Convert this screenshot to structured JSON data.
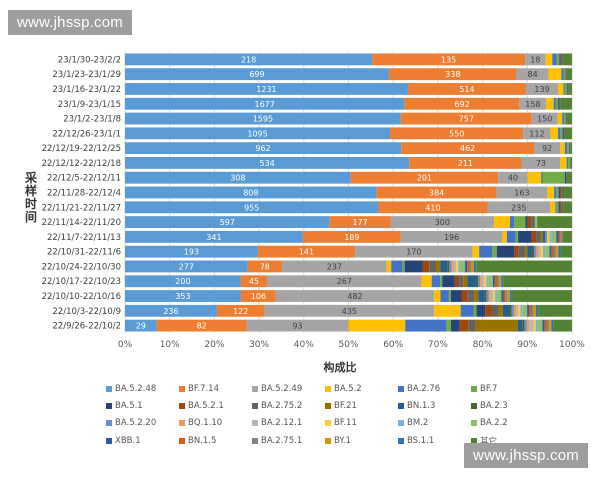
{
  "watermark": {
    "top": "www.jhssp.com",
    "bottom": "www.jhssp.com"
  },
  "chart_data": {
    "type": "bar",
    "orientation": "horizontal",
    "stacked": "percent",
    "title": "",
    "xlabel": "构成比",
    "ylabel": "采样时间",
    "xlim": [
      0,
      100
    ],
    "x_ticks": [
      "0%",
      "10%",
      "20%",
      "30%",
      "40%",
      "50%",
      "60%",
      "70%",
      "80%",
      "90%",
      "100%"
    ],
    "legend_position": "bottom",
    "categories": [
      "23/1/30-23/2/2",
      "23/1/23-23/1/29",
      "23/1/16-23/1/22",
      "23/1/9-23/1/15",
      "23/1/2-23/1/8",
      "22/12/26-23/1/1",
      "22/12/19-22/12/25",
      "22/12/12-22/12/18",
      "22/12/5-22/12/11",
      "22/11/28-22/12/4",
      "22/11/21-22/11/27",
      "22/11/14-22/11/20",
      "22/11/7-22/11/13",
      "22/10/31-22/11/6",
      "22/10/24-22/10/30",
      "22/10/17-22/10/23",
      "22/10/10-22/10/16",
      "22/10/3-22/10/9",
      "22/9/26-22/10/2"
    ],
    "series": [
      {
        "name": "BA.5.2.48",
        "color": "#5b9bd5",
        "values_pct": [
          55.3,
          62.0,
          63.3,
          62.5,
          61.7,
          59.3,
          61.8,
          63.6,
          50.5,
          56.3,
          56.7,
          45.8,
          39.6,
          30.2,
          27.4,
          27.5,
          27.6,
          20.9,
          7.1
        ],
        "labels": [
          "218",
          "699",
          "1231",
          "1677",
          "1595",
          "1095",
          "962",
          "534",
          "308",
          "808",
          "955",
          "597",
          "341",
          "193",
          "277",
          "200",
          "353",
          "236",
          "29"
        ]
      },
      {
        "name": "BF.7.14",
        "color": "#ed7d31",
        "values_pct": [
          34.2,
          30.0,
          26.4,
          25.8,
          29.3,
          29.8,
          29.7,
          25.1,
          33.0,
          26.8,
          24.4,
          13.6,
          21.8,
          22.1,
          7.7,
          6.2,
          8.3,
          10.8,
          20.1
        ],
        "labels": [
          "135",
          "338",
          "514",
          "692",
          "757",
          "550",
          "462",
          "211",
          "201",
          "384",
          "410",
          "177",
          "189",
          "141",
          "78",
          "45",
          "106",
          "122",
          "82"
        ]
      },
      {
        "name": "BA.5.2.49",
        "color": "#a5a5a5",
        "values_pct": [
          4.6,
          7.5,
          7.2,
          5.9,
          5.8,
          6.1,
          5.9,
          8.7,
          6.6,
          11.4,
          14.0,
          23.2,
          22.6,
          26.7,
          23.4,
          36.7,
          37.7,
          38.6,
          22.8
        ],
        "labels": [
          "18",
          "84",
          "139",
          "158",
          "150",
          "112",
          "92",
          "73",
          "40",
          "163",
          "235",
          "300",
          "196",
          "170",
          "237",
          "267",
          "482",
          "435",
          "93"
        ]
      },
      {
        "name": "BA.5.2",
        "color": "#ffc000",
        "values_pct": [
          1.5,
          3.0,
          1.2,
          1.7,
          1.0,
          1.7,
          1.0,
          1.4,
          3.0,
          1.5,
          1.2,
          3.5,
          1.0,
          1.5,
          1.0,
          2.4,
          1.5,
          6.0,
          12.7
        ]
      },
      {
        "name": "BA.2.76",
        "color": "#4472c4",
        "values_pct": [
          1.0,
          0.5,
          0.3,
          0.5,
          0.4,
          0.5,
          0.5,
          0.3,
          0.3,
          0.5,
          0.3,
          1.0,
          2.0,
          3.0,
          2.5,
          2.0,
          2.0,
          3.0,
          9.2
        ]
      },
      {
        "name": "BF.7",
        "color": "#70ad47",
        "values_pct": [
          0.5,
          0.4,
          0.4,
          0.5,
          0.4,
          0.5,
          0.4,
          0.4,
          5.0,
          0.5,
          0.4,
          2.5,
          0.5,
          1.0,
          0.5,
          0.5,
          0.5,
          0.6,
          1.0
        ]
      },
      {
        "name": "BA.5.1",
        "color": "#264478",
        "values_pct": [
          0,
          0,
          0,
          0.2,
          0,
          0.2,
          0,
          0,
          0.3,
          0.3,
          0.3,
          0.5,
          3.0,
          4.0,
          4.0,
          3.0,
          2.5,
          2.0,
          2.0
        ]
      },
      {
        "name": "BA.5.2.1",
        "color": "#9e480e",
        "values_pct": [
          0,
          0,
          0,
          0,
          0,
          0,
          0,
          0,
          0,
          0.3,
          0.3,
          0.8,
          1.0,
          1.0,
          1.5,
          1.0,
          1.5,
          1.5,
          2.0
        ]
      },
      {
        "name": "BA.2.75.2",
        "color": "#636363",
        "values_pct": [
          0.8,
          0.4,
          0.4,
          0.3,
          0.3,
          0.3,
          0.3,
          0.2,
          0.3,
          0.5,
          0.4,
          0.8,
          1.0,
          1.5,
          1.5,
          1.0,
          1.5,
          1.5,
          1.5
        ]
      },
      {
        "name": "BF.21",
        "color": "#997300",
        "values_pct": [
          0,
          0,
          0,
          0,
          0,
          0,
          0,
          0,
          0,
          0,
          0,
          0,
          0.5,
          0.5,
          1.0,
          1.0,
          1.0,
          1.0,
          9.5
        ]
      },
      {
        "name": "BN.1.3",
        "color": "#255e91",
        "values_pct": [
          0,
          0,
          0,
          0,
          0,
          0,
          0,
          0,
          0,
          0,
          0,
          0,
          0.5,
          1.0,
          1.5,
          2.0,
          1.5,
          1.5,
          1.0
        ]
      },
      {
        "name": "BA.2.3",
        "color": "#43682b",
        "values_pct": [
          0,
          0,
          0,
          0,
          0,
          0,
          0,
          0,
          0,
          0,
          0,
          0,
          0,
          0.5,
          0.5,
          0.5,
          0.5,
          0.5,
          0.5
        ]
      },
      {
        "name": "BA.5.2.20",
        "color": "#698ed0",
        "values_pct": [
          0,
          0,
          0,
          0,
          0,
          0,
          0,
          0,
          0,
          0,
          0,
          0,
          0.5,
          0.5,
          0.5,
          0.5,
          0.5,
          0.5,
          0.5
        ]
      },
      {
        "name": "BQ.1.10",
        "color": "#f1975a",
        "values_pct": [
          0,
          0,
          0,
          0,
          0,
          0,
          0,
          0,
          0,
          0,
          0,
          0,
          0,
          0.5,
          0.5,
          0.5,
          0.5,
          0.5,
          0.5
        ]
      },
      {
        "name": "BA.2.12.1",
        "color": "#b7b7b7",
        "values_pct": [
          0,
          0,
          0,
          0,
          0,
          0,
          0,
          0,
          0,
          0,
          0,
          0,
          0,
          0.5,
          0.5,
          0.5,
          0.5,
          0.5,
          1.0
        ]
      },
      {
        "name": "BF.11",
        "color": "#ffcd33",
        "values_pct": [
          0,
          0,
          0,
          0,
          0,
          0,
          0,
          0,
          0,
          0,
          0,
          0,
          0.5,
          0.5,
          0.5,
          0.5,
          0.5,
          0.5,
          0.5
        ]
      },
      {
        "name": "BM.2",
        "color": "#7cafdd",
        "values_pct": [
          0,
          0,
          0,
          0,
          0,
          0,
          0,
          0,
          0,
          0,
          0,
          0,
          0.5,
          0.5,
          0.5,
          0.5,
          0.5,
          0.5,
          0.5
        ]
      },
      {
        "name": "BA.2.2",
        "color": "#8cc168",
        "values_pct": [
          0,
          0,
          0,
          0,
          0,
          0,
          0,
          0,
          0,
          0,
          0,
          0.5,
          1.0,
          1.0,
          1.0,
          1.0,
          1.0,
          1.0,
          1.0
        ]
      },
      {
        "name": "XBB.1",
        "color": "#335aa1",
        "values_pct": [
          0,
          0,
          0,
          0,
          0,
          0,
          0,
          0,
          0,
          0,
          0,
          0,
          0.5,
          0.5,
          0.5,
          0.5,
          0.5,
          0.5,
          0.5
        ]
      },
      {
        "name": "BN.1.5",
        "color": "#d26012",
        "values_pct": [
          0,
          0,
          0,
          0,
          0,
          0,
          0,
          0,
          0,
          0,
          0,
          0,
          0.5,
          0.5,
          0.5,
          0.5,
          0.5,
          0.5,
          0.5
        ]
      },
      {
        "name": "BA.2.75.1",
        "color": "#848484",
        "values_pct": [
          0,
          0,
          0,
          0,
          0,
          0,
          0,
          0,
          0,
          0,
          0,
          0,
          0.5,
          0.5,
          0.5,
          0.5,
          0.5,
          0.5,
          0.5
        ]
      },
      {
        "name": "BY.1",
        "color": "#cc9a00",
        "values_pct": [
          0,
          0,
          0,
          0,
          0,
          0,
          0,
          0,
          0,
          0,
          0,
          0,
          0,
          0.5,
          0.5,
          0.5,
          0.5,
          0.5,
          0.5
        ]
      },
      {
        "name": "BS.1.1",
        "color": "#2e75b6",
        "values_pct": [
          0,
          0,
          0,
          0,
          0,
          0,
          0,
          0,
          0,
          0,
          0,
          0,
          0,
          0.5,
          0.5,
          0.5,
          0.5,
          0.5,
          0.5
        ]
      },
      {
        "name": "其它",
        "color": "#548235",
        "values_pct": [
          2.1,
          1.2,
          0.8,
          2.6,
          1.1,
          1.6,
          0.4,
          0.3,
          1.0,
          1.9,
          2.0,
          7.8,
          2.0,
          2.6,
          21.4,
          16.3,
          14.3,
          7.7,
          4.1
        ]
      }
    ]
  }
}
